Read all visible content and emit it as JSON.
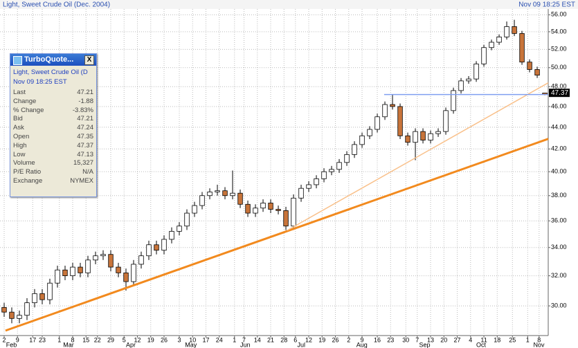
{
  "chart_data": {
    "type": "candlestick",
    "title": "Light, Sweet Crude Oil (Dec. 2004)",
    "timestamp": "Nov 09 18:25 EST",
    "log_y": true,
    "grid": true,
    "ylim": [
      28.15,
      56.7
    ],
    "yticks": [
      {
        "value": 30,
        "label": "30.00"
      },
      {
        "value": 32,
        "label": "32.00"
      },
      {
        "value": 34,
        "label": "34.00"
      },
      {
        "value": 36,
        "label": "36.00"
      },
      {
        "value": 38,
        "label": "38.00"
      },
      {
        "value": 40,
        "label": "40.00"
      },
      {
        "value": 42,
        "label": "42.00"
      },
      {
        "value": 44,
        "label": "44.00"
      },
      {
        "value": 46,
        "label": "46.00"
      },
      {
        "value": 48,
        "label": "48.00"
      },
      {
        "value": 50,
        "label": "50.00"
      },
      {
        "value": 52,
        "label": "52.00"
      },
      {
        "value": 54,
        "label": "54.00"
      },
      {
        "value": 56,
        "label": "56.00"
      }
    ],
    "xlim": [
      -2.18,
      285.8
    ],
    "xticks": [
      {
        "value": 0,
        "label": "2"
      },
      {
        "value": 7,
        "label": "9"
      },
      {
        "value": 15,
        "label": "17"
      },
      {
        "value": 20,
        "label": "23"
      },
      {
        "value": 29,
        "label": "1"
      },
      {
        "value": 36,
        "label": "8"
      },
      {
        "value": 43,
        "label": "15"
      },
      {
        "value": 49,
        "label": "22"
      },
      {
        "value": 56,
        "label": "29"
      },
      {
        "value": 63,
        "label": "5"
      },
      {
        "value": 70,
        "label": "12"
      },
      {
        "value": 77,
        "label": "19"
      },
      {
        "value": 84,
        "label": "26"
      },
      {
        "value": 92,
        "label": "3"
      },
      {
        "value": 99,
        "label": "10"
      },
      {
        "value": 106,
        "label": "17"
      },
      {
        "value": 113,
        "label": "24"
      },
      {
        "value": 121,
        "label": "1"
      },
      {
        "value": 126,
        "label": "7"
      },
      {
        "value": 133,
        "label": "14"
      },
      {
        "value": 140,
        "label": "21"
      },
      {
        "value": 147,
        "label": "28"
      },
      {
        "value": 153,
        "label": "6"
      },
      {
        "value": 160,
        "label": "12"
      },
      {
        "value": 167,
        "label": "19"
      },
      {
        "value": 174,
        "label": "26"
      },
      {
        "value": 181,
        "label": "2"
      },
      {
        "value": 188,
        "label": "9"
      },
      {
        "value": 196,
        "label": "16"
      },
      {
        "value": 203,
        "label": "23"
      },
      {
        "value": 211,
        "label": "30"
      },
      {
        "value": 217,
        "label": "7"
      },
      {
        "value": 224,
        "label": "13"
      },
      {
        "value": 231,
        "label": "20"
      },
      {
        "value": 238,
        "label": "27"
      },
      {
        "value": 245,
        "label": "4"
      },
      {
        "value": 252,
        "label": "11"
      },
      {
        "value": 259,
        "label": "18"
      },
      {
        "value": 267,
        "label": "25"
      },
      {
        "value": 275,
        "label": "1"
      },
      {
        "value": 281,
        "label": "8"
      }
    ],
    "month_labels": [
      {
        "value": 1,
        "label": "Feb"
      },
      {
        "value": 31,
        "label": "Mar"
      },
      {
        "value": 64,
        "label": "Apr"
      },
      {
        "value": 95,
        "label": "May"
      },
      {
        "value": 124,
        "label": "Jun"
      },
      {
        "value": 154,
        "label": "Jul"
      },
      {
        "value": 185,
        "label": "Aug"
      },
      {
        "value": 218,
        "label": "Sep"
      },
      {
        "value": 248,
        "label": "Oct"
      },
      {
        "value": 278,
        "label": "Nov"
      }
    ],
    "up_color": "#ffffff",
    "down_color": "#c8743a",
    "x": [
      0,
      4,
      8,
      12,
      16,
      20,
      24,
      28,
      32,
      36,
      40,
      44,
      48,
      52,
      56,
      60,
      64,
      68,
      72,
      76,
      80,
      84,
      88,
      92,
      96,
      100,
      104,
      108,
      112,
      116,
      120,
      124,
      128,
      132,
      136,
      140,
      144,
      148,
      152,
      156,
      160,
      164,
      168,
      172,
      176,
      180,
      184,
      188,
      192,
      196,
      200,
      204,
      208,
      212,
      216,
      220,
      224,
      228,
      232,
      236,
      240,
      244,
      248,
      252,
      256,
      260,
      264,
      268,
      272,
      276,
      280,
      284
    ],
    "open": [
      29.9,
      29.6,
      29.2,
      29.4,
      30.2,
      30.8,
      30.4,
      31.5,
      32.4,
      32.0,
      32.6,
      32.2,
      33.1,
      33.4,
      33.5,
      32.6,
      32.2,
      31.6,
      32.8,
      33.4,
      34.2,
      33.8,
      34.6,
      35.2,
      35.6,
      36.6,
      37.2,
      38.0,
      38.3,
      38.4,
      38.0,
      38.2,
      37.3,
      36.6,
      37.0,
      37.4,
      36.9,
      36.8,
      35.6,
      37.8,
      38.6,
      38.9,
      39.4,
      40.0,
      40.2,
      40.8,
      41.5,
      42.4,
      43.2,
      43.8,
      45.0,
      46.2,
      46.0,
      43.2,
      42.6,
      43.6,
      42.8,
      43.4,
      43.6,
      45.6,
      47.6,
      48.6,
      48.8,
      50.4,
      52.2,
      52.8,
      53.4,
      54.6,
      53.8,
      50.6,
      49.8,
      47.35
    ],
    "high": [
      30.2,
      29.9,
      29.7,
      30.5,
      31.1,
      31.1,
      31.8,
      32.7,
      32.7,
      32.9,
      32.9,
      33.4,
      33.7,
      33.8,
      33.8,
      32.9,
      32.5,
      33.1,
      33.7,
      34.5,
      34.5,
      34.9,
      35.5,
      35.9,
      36.9,
      37.5,
      38.3,
      38.6,
      38.9,
      38.7,
      40.1,
      38.5,
      37.6,
      37.3,
      37.7,
      37.7,
      37.2,
      37.1,
      38.1,
      38.9,
      39.2,
      39.7,
      40.3,
      40.5,
      41.1,
      41.8,
      42.7,
      43.5,
      44.1,
      45.3,
      46.5,
      47.2,
      46.3,
      43.5,
      43.9,
      43.9,
      43.7,
      43.9,
      45.9,
      47.9,
      48.9,
      49.1,
      50.7,
      52.5,
      53.1,
      53.7,
      55.2,
      55.4,
      54.1,
      50.9,
      50.1,
      47.37
    ],
    "low": [
      29.3,
      28.9,
      28.9,
      29.1,
      29.9,
      30.1,
      30.1,
      31.2,
      31.7,
      31.7,
      31.9,
      31.9,
      32.8,
      33.1,
      32.3,
      31.9,
      31.0,
      31.3,
      32.5,
      33.1,
      33.5,
      33.5,
      34.3,
      34.9,
      35.3,
      36.3,
      36.9,
      37.7,
      38.0,
      37.7,
      37.7,
      37.0,
      36.3,
      36.3,
      36.7,
      36.6,
      36.5,
      35.3,
      35.3,
      37.5,
      38.3,
      38.6,
      39.1,
      39.7,
      39.9,
      40.5,
      41.2,
      42.1,
      42.9,
      43.5,
      44.7,
      45.7,
      42.9,
      42.3,
      41.0,
      42.5,
      42.5,
      43.1,
      43.3,
      45.3,
      47.3,
      48.3,
      48.5,
      50.1,
      51.9,
      52.5,
      53.1,
      53.5,
      50.3,
      49.5,
      48.9,
      47.13
    ],
    "close": [
      29.6,
      29.2,
      29.4,
      30.2,
      30.8,
      30.4,
      31.5,
      32.4,
      32.0,
      32.6,
      32.2,
      33.1,
      33.4,
      33.5,
      32.6,
      32.2,
      31.6,
      32.8,
      33.4,
      34.2,
      33.8,
      34.6,
      35.2,
      35.6,
      36.6,
      37.2,
      38.0,
      38.3,
      38.4,
      38.0,
      38.2,
      37.3,
      36.6,
      37.0,
      37.4,
      36.9,
      36.8,
      35.6,
      37.8,
      38.6,
      38.9,
      39.4,
      40.0,
      40.2,
      40.8,
      41.5,
      42.4,
      43.2,
      43.8,
      45.0,
      46.2,
      46.0,
      43.2,
      42.6,
      43.6,
      42.8,
      43.4,
      43.6,
      45.6,
      47.6,
      48.6,
      48.8,
      50.4,
      52.2,
      52.8,
      53.4,
      54.6,
      53.8,
      50.6,
      49.8,
      49.2,
      47.21
    ],
    "trendlines": [
      {
        "color": "#f28a1e",
        "width": 3,
        "x": [
          0.7,
          285.8
        ],
        "y": [
          28.45,
          42.92
        ]
      },
      {
        "color": "#f9c08a",
        "width": 1.5,
        "x": [
          148.7,
          285.8
        ],
        "y": [
          35.27,
          48.4
        ]
      },
      {
        "color": "#7f9ff0",
        "width": 1.5,
        "x": [
          199.6,
          285.8
        ],
        "y": [
          47.2,
          47.2
        ]
      }
    ],
    "price_marker": 47.37
  },
  "quote_window": {
    "title": "TurboQuote...",
    "close": "X",
    "symbol": "Light, Sweet Crude Oil (D",
    "time": "Nov 09 18:25 EST",
    "rows": [
      [
        "Last",
        "47.21"
      ],
      [
        "Change",
        "-1.88"
      ],
      [
        "% Change",
        "-3.83%"
      ],
      [
        "Bid",
        "47.21"
      ],
      [
        "Ask",
        "47.24"
      ],
      [
        "Open",
        "47.35"
      ],
      [
        "High",
        "47.37"
      ],
      [
        "Low",
        "47.13"
      ],
      [
        "Volume",
        "15,327"
      ],
      [
        "P/E Ratio",
        "N/A"
      ],
      [
        "Exchange",
        "NYMEX"
      ]
    ]
  }
}
